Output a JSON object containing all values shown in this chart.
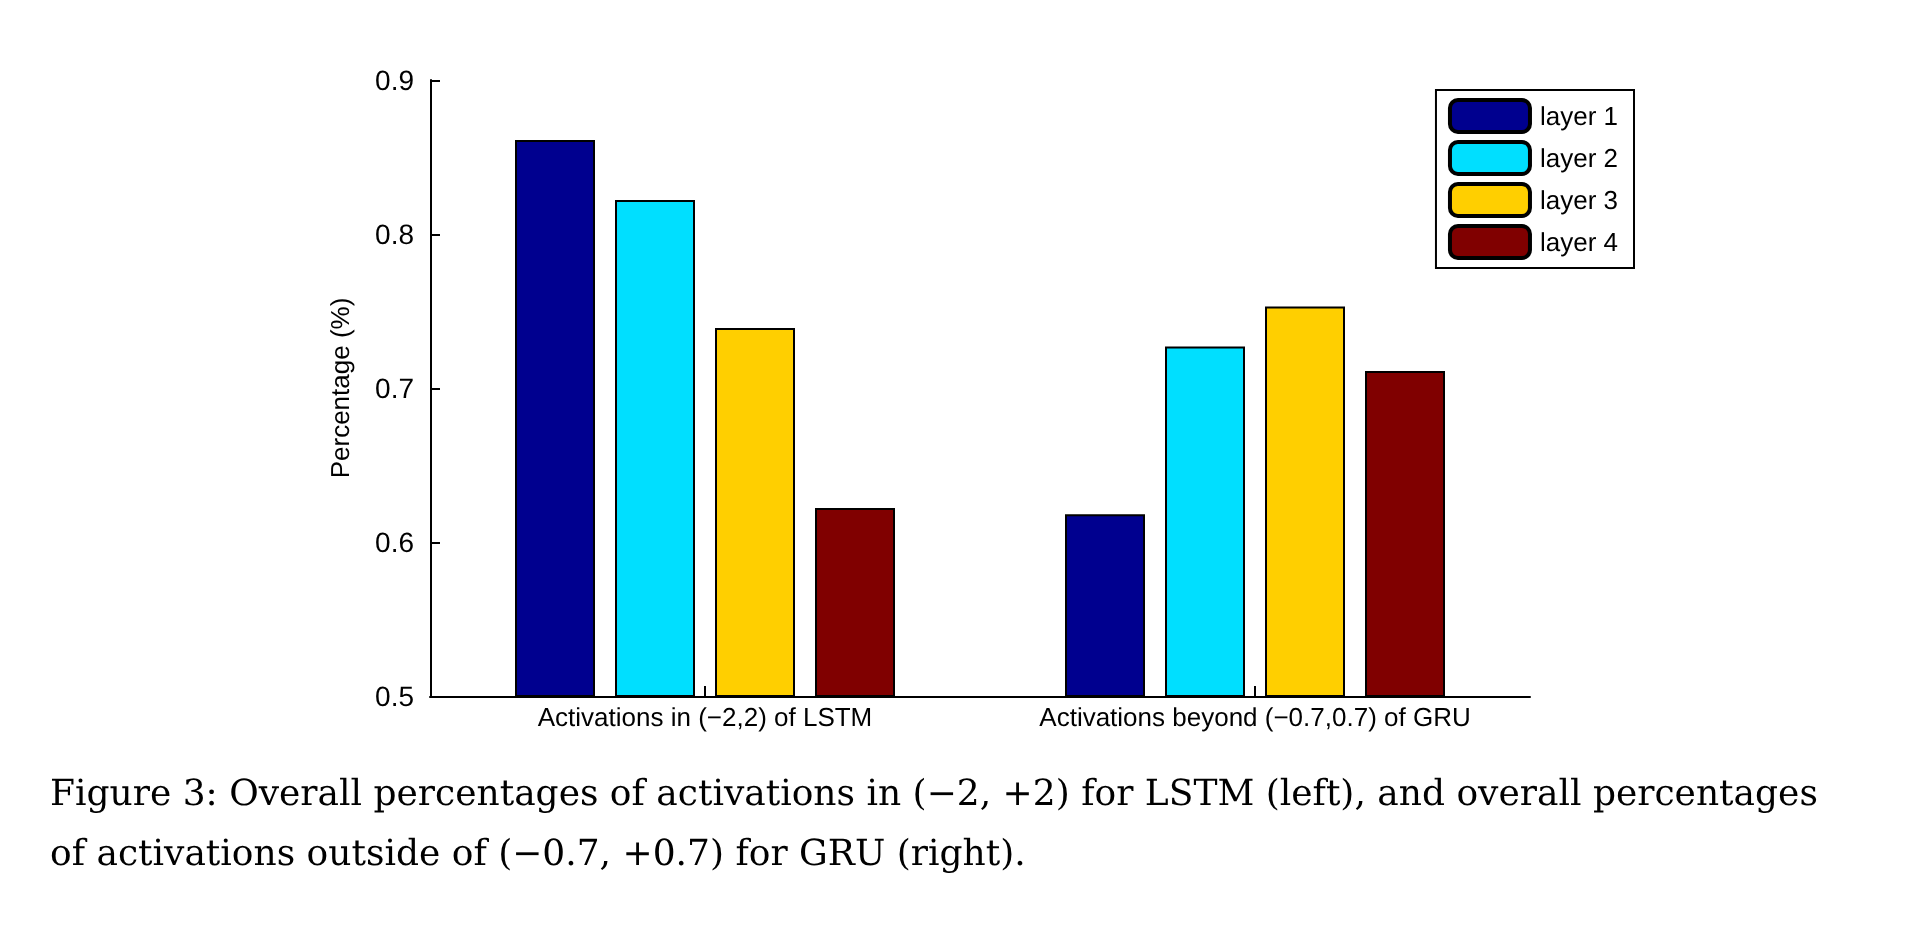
{
  "chart_data": {
    "type": "bar",
    "ylabel": "Percentage (%)",
    "categories": [
      "Activations in (−2,2) of LSTM",
      "Activations beyond (−0.7,0.7) of GRU"
    ],
    "series": [
      {
        "name": "layer 1",
        "color": "#00008f",
        "values": [
          0.861,
          0.618
        ]
      },
      {
        "name": "layer 2",
        "color": "#00dfff",
        "values": [
          0.822,
          0.727
        ]
      },
      {
        "name": "layer 3",
        "color": "#ffcf00",
        "values": [
          0.739,
          0.753
        ]
      },
      {
        "name": "layer 4",
        "color": "#800000",
        "values": [
          0.622,
          0.711
        ]
      }
    ],
    "ylim": [
      0.5,
      0.9
    ],
    "yticks": [
      0.5,
      0.6,
      0.7,
      0.8,
      0.9
    ],
    "grid": false,
    "legend": "top right",
    "annotations": [
      "Figure 3: Overall percentages of activations in (−2, +2) for LSTM (left), and overall percentages of activations outside of (−0.7, +0.7) for GRU (right)."
    ]
  }
}
